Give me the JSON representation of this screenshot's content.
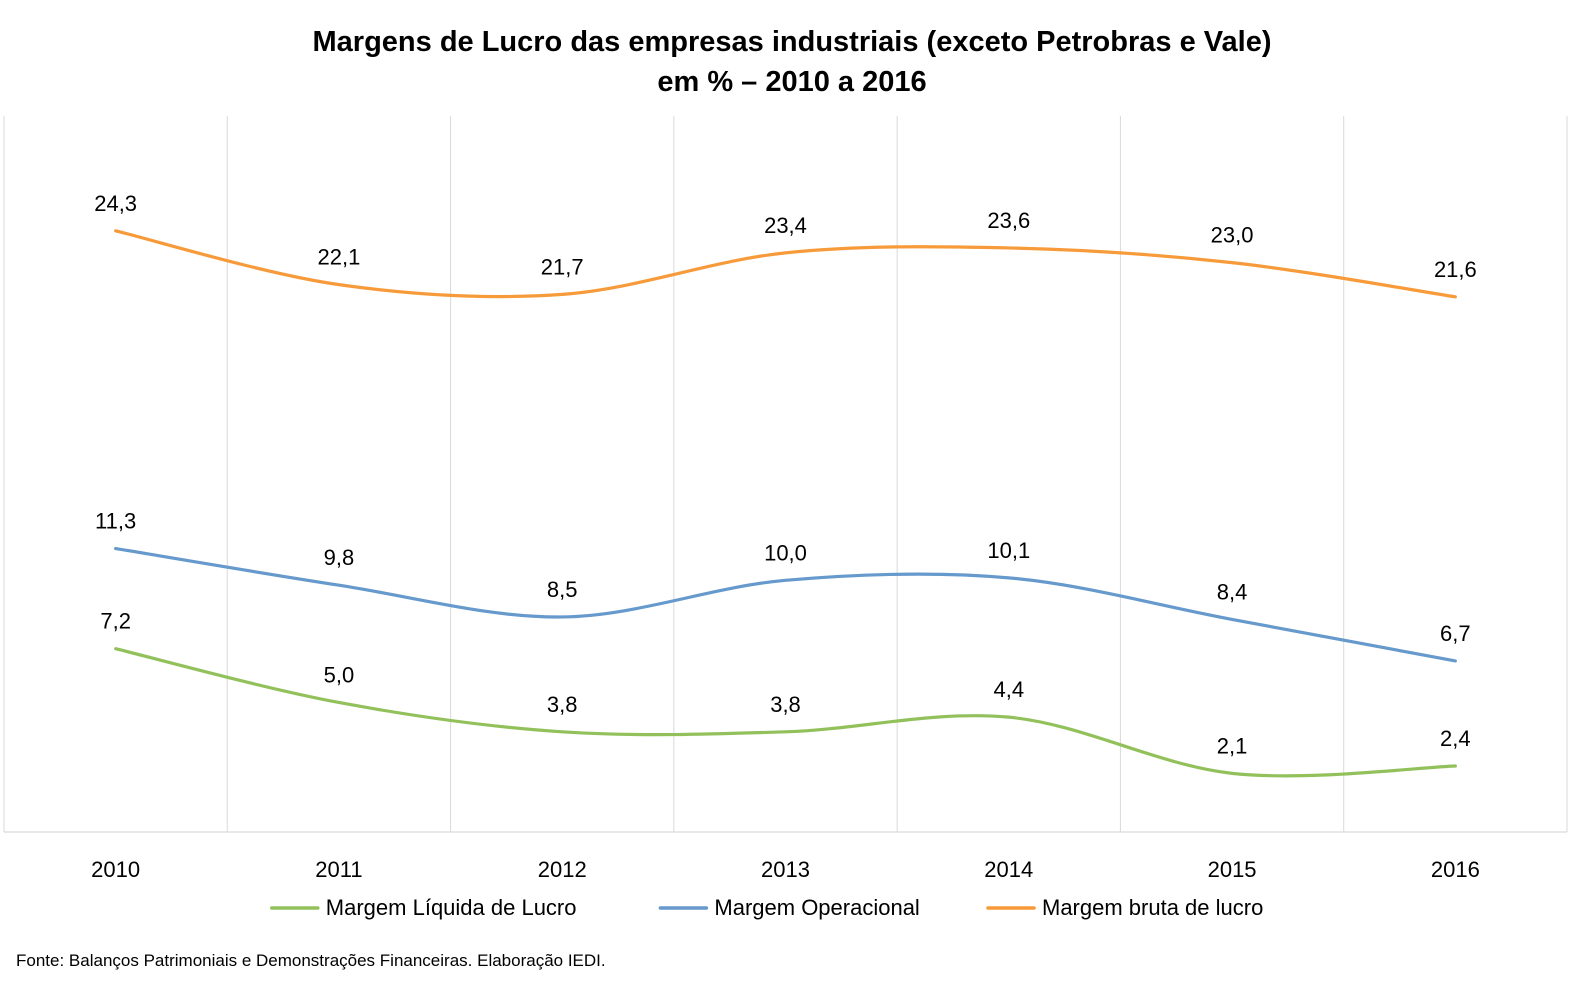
{
  "chart_data": {
    "type": "line",
    "title": "Margens de Lucro das empresas industriais (exceto Petrobras e Vale)",
    "subtitle": "em % – 2010 a 2016",
    "categories": [
      "2010",
      "2011",
      "2012",
      "2013",
      "2014",
      "2015",
      "2016"
    ],
    "series": [
      {
        "name": "Margem Líquida de Lucro",
        "color": "#92c15b",
        "values": [
          7.2,
          5.0,
          3.8,
          3.8,
          4.4,
          2.1,
          2.4
        ],
        "labels": [
          "7,2",
          "5,0",
          "3,8",
          "3,8",
          "4,4",
          "2,1",
          "2,4"
        ]
      },
      {
        "name": "Margem Operacional",
        "color": "#6699cc",
        "values": [
          11.3,
          9.8,
          8.5,
          10.0,
          10.1,
          8.4,
          6.7
        ],
        "labels": [
          "11,3",
          "9,8",
          "8,5",
          "10,0",
          "10,1",
          "8,4",
          "6,7"
        ]
      },
      {
        "name": "Margem bruta de lucro",
        "color": "#f79a3a",
        "values": [
          24.3,
          22.1,
          21.7,
          23.4,
          23.6,
          23.0,
          21.6
        ],
        "labels": [
          "24,3",
          "22,1",
          "21,7",
          "23,4",
          "23,6",
          "23,0",
          "21,6"
        ]
      }
    ],
    "xlabel": "",
    "ylabel": "",
    "ylim": [
      -0.3,
      29
    ],
    "grid": "vertical",
    "legend": "bottom",
    "smooth": true
  },
  "source": "Fonte: Balanços Patrimoniais e Demonstrações Financeiras. Elaboração IEDI."
}
